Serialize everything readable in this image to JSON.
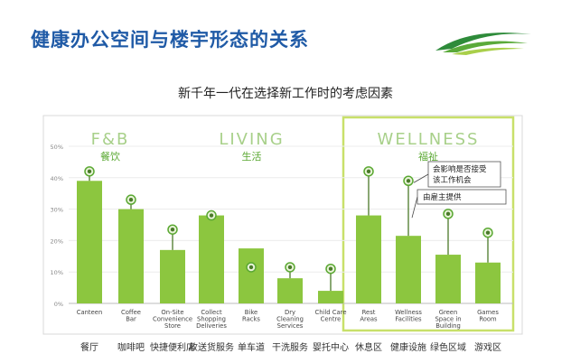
{
  "slide": {
    "title": "健康办公空间与楼宇形态的关系",
    "subtitle": "新千年一代在选择新工作时的考虑因素"
  },
  "colors": {
    "title": "#1f5aa6",
    "bar": "#8cc63f",
    "bar_dark": "#5aa832",
    "marker_line": "#4a7a2a",
    "wellness_box": "#c8e06a",
    "heading": "#a8d08a",
    "axis": "#888888"
  },
  "chart_data": {
    "type": "bar",
    "ylim": [
      0,
      50
    ],
    "yticks": [
      "0%",
      "10%",
      "20%",
      "30%",
      "40%",
      "50%"
    ],
    "groups": [
      {
        "name": "F&B",
        "cn": "餐饮",
        "from": 0,
        "to": 1
      },
      {
        "name": "LIVING",
        "cn": "生活",
        "from": 2,
        "to": 6
      },
      {
        "name": "WELLNESS",
        "cn": "福祉",
        "from": 7,
        "to": 10
      }
    ],
    "categories": [
      "Canteen",
      "Coffee\nBar",
      "On-Site\nConvenience\nStore",
      "Collect\nShopping\nDeliveries",
      "Bike\nRacks",
      "Dry\nCleaning\nServices",
      "Child Care\nCentre",
      "Rest\nAreas",
      "Wellness\nFacilities",
      "Green\nSpace in\nBuilding",
      "Games\nRoom"
    ],
    "categories_cn": [
      "餐厅",
      "咖啡吧",
      "快捷便利店",
      "收送货服务",
      "单车道",
      "干洗服务",
      "婴托中心",
      "休息区",
      "健康设施",
      "绿色区域",
      "游戏区"
    ],
    "series": [
      {
        "name": "",
        "values": [
          39,
          30,
          17,
          28,
          17.5,
          8,
          4,
          28,
          21.5,
          15.5,
          13
        ]
      },
      {
        "name": "",
        "values": [
          42,
          33,
          23.5,
          28,
          11.5,
          11.5,
          11,
          42,
          39,
          28.5,
          22.5
        ]
      }
    ],
    "legend_notes": [
      {
        "text": "会影响是否接受\n该工作机会"
      },
      {
        "text": "由雇主提供"
      }
    ]
  }
}
